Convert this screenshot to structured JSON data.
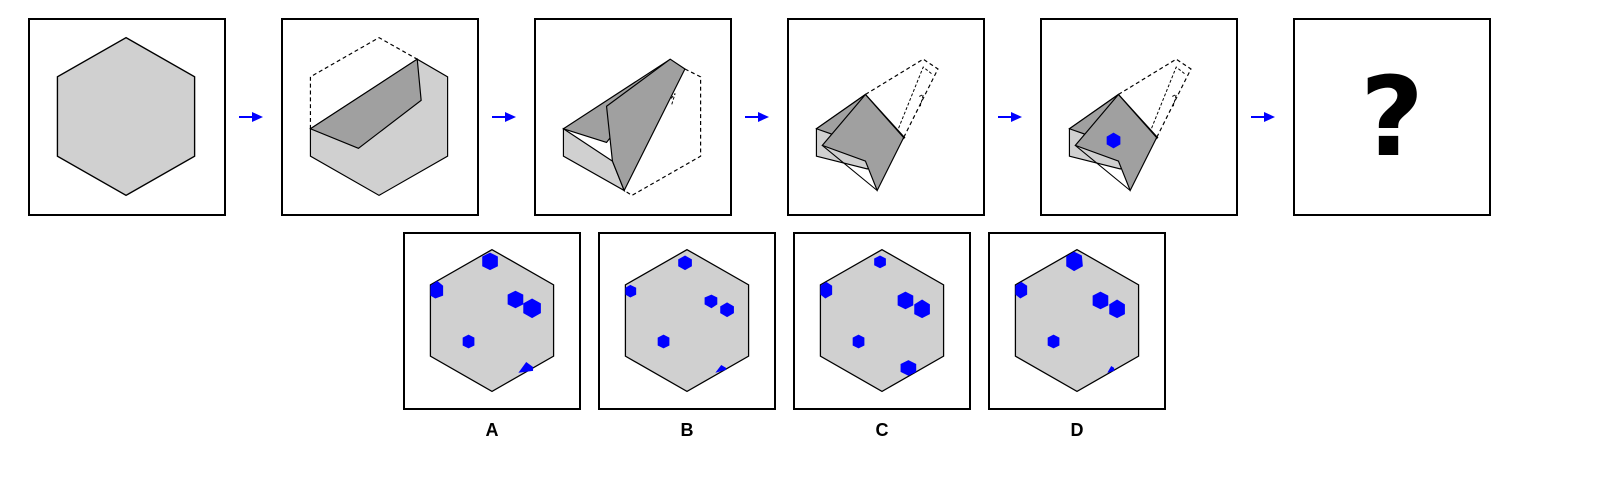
{
  "colors": {
    "paper": "#d0d0d0",
    "folded": "#a0a0a0",
    "hole": "#0000ff",
    "arrow": "#0000ff",
    "border": "#000000"
  },
  "question_mark": "?",
  "options": [
    {
      "label": "A"
    },
    {
      "label": "B"
    },
    {
      "label": "C"
    },
    {
      "label": "D"
    }
  ],
  "icons": {
    "arrow": "right-arrow-icon",
    "hole": "hexagon-hole-icon"
  }
}
